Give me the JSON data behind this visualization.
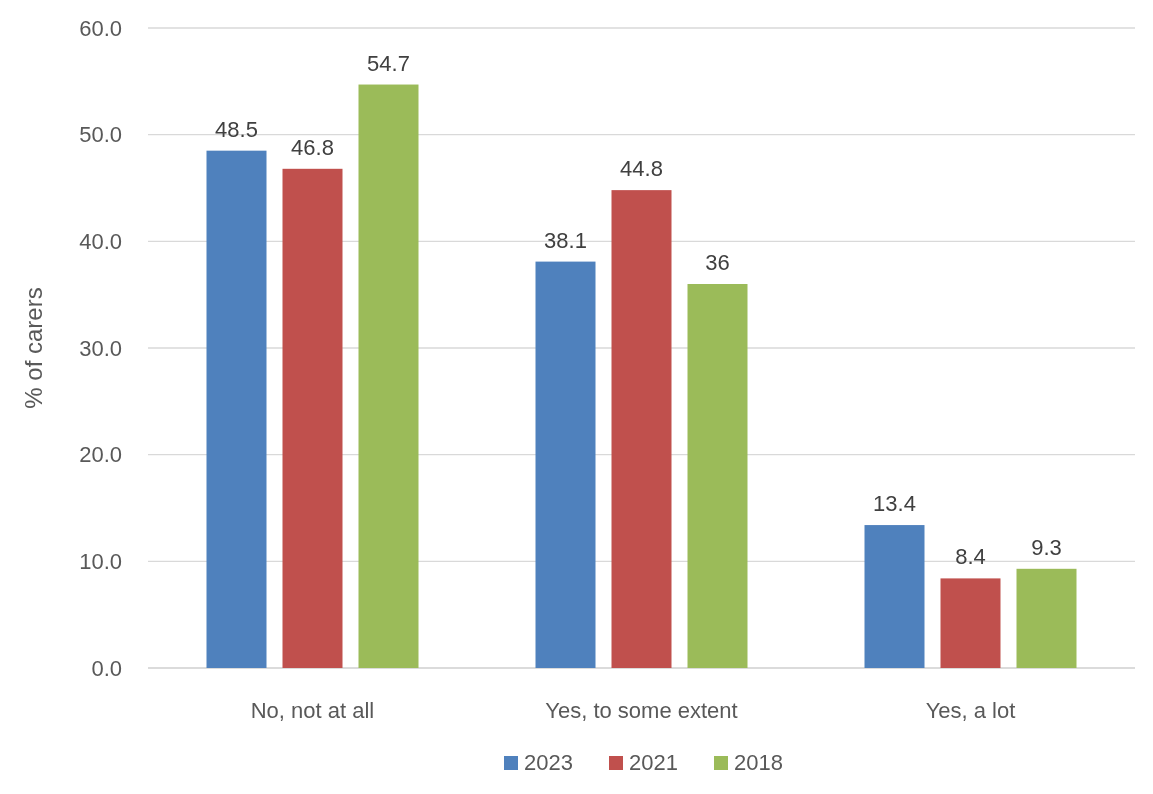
{
  "chart_data": {
    "type": "bar",
    "ylabel": "% of carers",
    "categories": [
      "No, not at all",
      "Yes, to some extent",
      "Yes, a lot"
    ],
    "series": [
      {
        "name": "2023",
        "color": "#4f81bd",
        "values": [
          48.5,
          38.1,
          13.4
        ]
      },
      {
        "name": "2021",
        "color": "#c0504d",
        "values": [
          46.8,
          44.8,
          8.4
        ]
      },
      {
        "name": "2018",
        "color": "#9bbb59",
        "values": [
          54.7,
          36,
          9.3
        ]
      }
    ],
    "ylim": [
      0,
      60
    ],
    "yticks": [
      {
        "value": 0,
        "label": "0.0"
      },
      {
        "value": 10,
        "label": "10.0"
      },
      {
        "value": 20,
        "label": "20.0"
      },
      {
        "value": 30,
        "label": "30.0"
      },
      {
        "value": 40,
        "label": "40.0"
      },
      {
        "value": 50,
        "label": "50.0"
      },
      {
        "value": 60,
        "label": "60.0"
      }
    ],
    "grid": "y",
    "legend": "bottom",
    "data_labels": true
  }
}
